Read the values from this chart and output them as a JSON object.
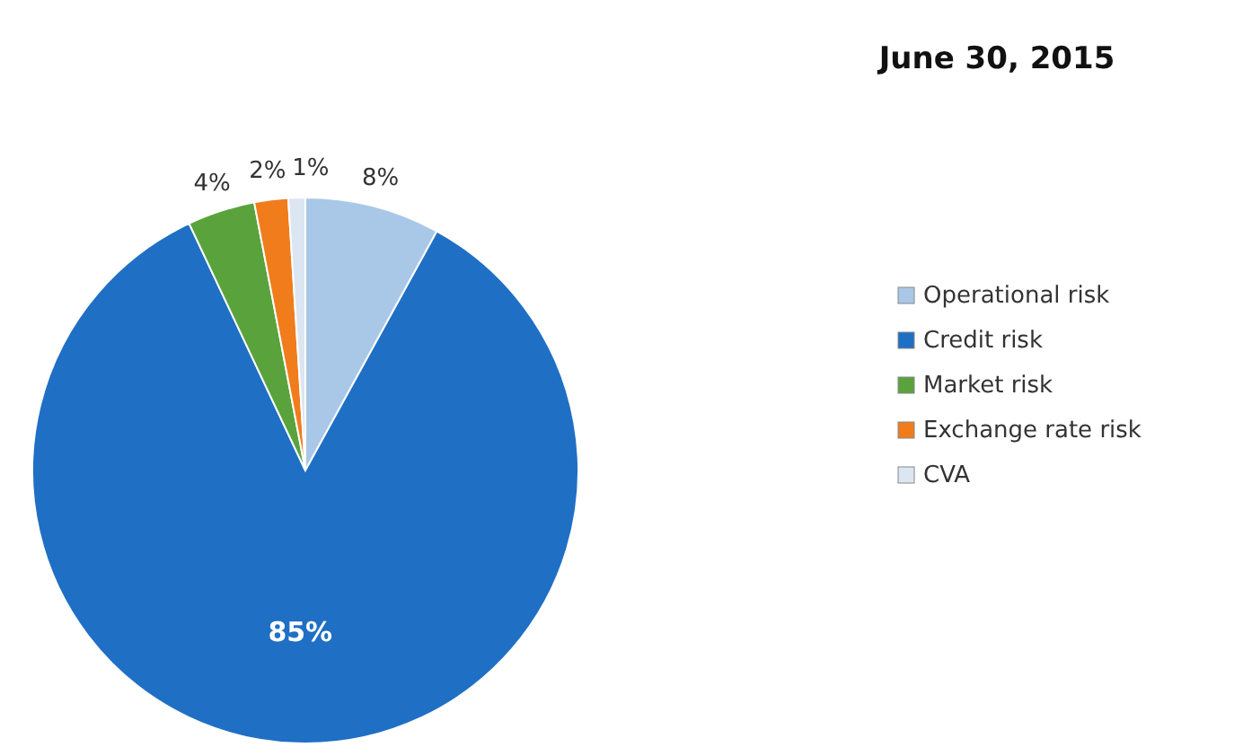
{
  "chart_data": {
    "type": "pie",
    "title": "June 30, 2015",
    "categories": [
      "Operational risk",
      "Credit risk",
      "Market risk",
      "Exchange rate risk",
      "CVA"
    ],
    "values": [
      8,
      85,
      4,
      2,
      1
    ],
    "colors": [
      "#a9c8e8",
      "#1f6fc5",
      "#5aa33c",
      "#f07c1c",
      "#dce6f2"
    ],
    "value_labels": [
      "8%",
      "85%",
      "4%",
      "2%",
      "1%"
    ],
    "legend": "right"
  }
}
